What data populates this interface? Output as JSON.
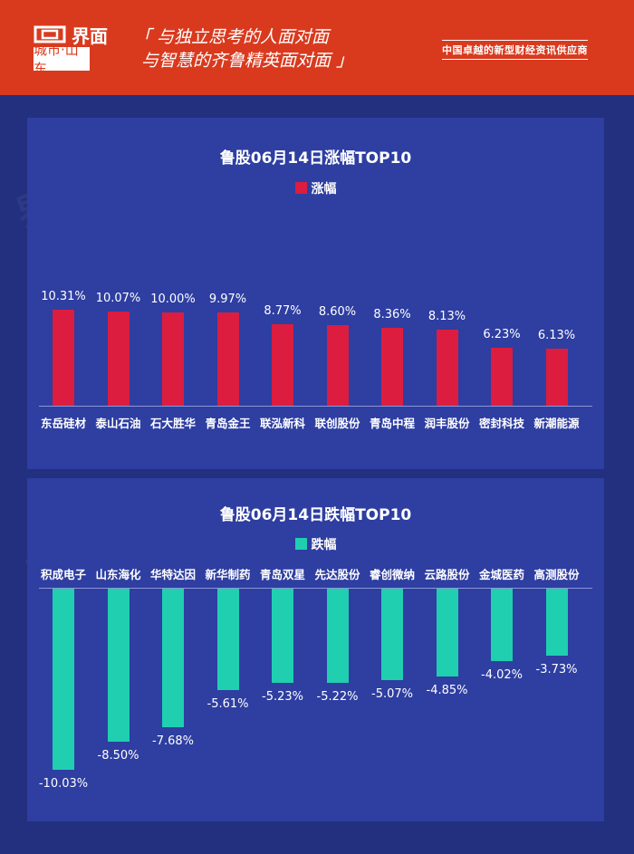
{
  "header": {
    "logo_text": "界面",
    "logo_sub": "城市·山东",
    "slogan_line1": "「 与独立思考的人面对面",
    "slogan_line2": "与智慧的齐鲁精英面对面 」",
    "tagline": "中国卓越的新型财经资讯供应商",
    "bg_color": "#d93a1e"
  },
  "watermark": "界面 城市·山东",
  "chart_data": [
    {
      "type": "bar",
      "title": "鲁股06月14日涨幅TOP10",
      "legend": [
        "涨幅"
      ],
      "color": "#dc1d3f",
      "categories": [
        "东岳硅材",
        "泰山石油",
        "石大胜华",
        "青岛金王",
        "联泓新科",
        "联创股份",
        "青岛中程",
        "润丰股份",
        "密封科技",
        "新潮能源"
      ],
      "values": [
        10.31,
        10.07,
        10.0,
        9.97,
        8.77,
        8.6,
        8.36,
        8.13,
        6.23,
        6.13
      ],
      "labels": [
        "10.31%",
        "10.07%",
        "10.00%",
        "9.97%",
        "8.77%",
        "8.60%",
        "8.36%",
        "8.13%",
        "6.23%",
        "6.13%"
      ],
      "xlabel": "",
      "ylabel": "",
      "grid": false,
      "legend_position": "top"
    },
    {
      "type": "bar",
      "title": "鲁股06月14日跌幅TOP10",
      "legend": [
        "跌幅"
      ],
      "color": "#1fcfb0",
      "categories": [
        "积成电子",
        "山东海化",
        "华特达因",
        "新华制药",
        "青岛双星",
        "先达股份",
        "睿创微纳",
        "云路股份",
        "金城医药",
        "高测股份"
      ],
      "values": [
        -10.03,
        -8.5,
        -7.68,
        -5.61,
        -5.23,
        -5.22,
        -5.07,
        -4.85,
        -4.02,
        -3.73
      ],
      "labels": [
        "-10.03%",
        "-8.50%",
        "-7.68%",
        "-5.61%",
        "-5.23%",
        "-5.22%",
        "-5.07%",
        "-4.85%",
        "-4.02%",
        "-3.73%"
      ],
      "xlabel": "",
      "ylabel": "",
      "grid": false,
      "legend_position": "top"
    }
  ]
}
